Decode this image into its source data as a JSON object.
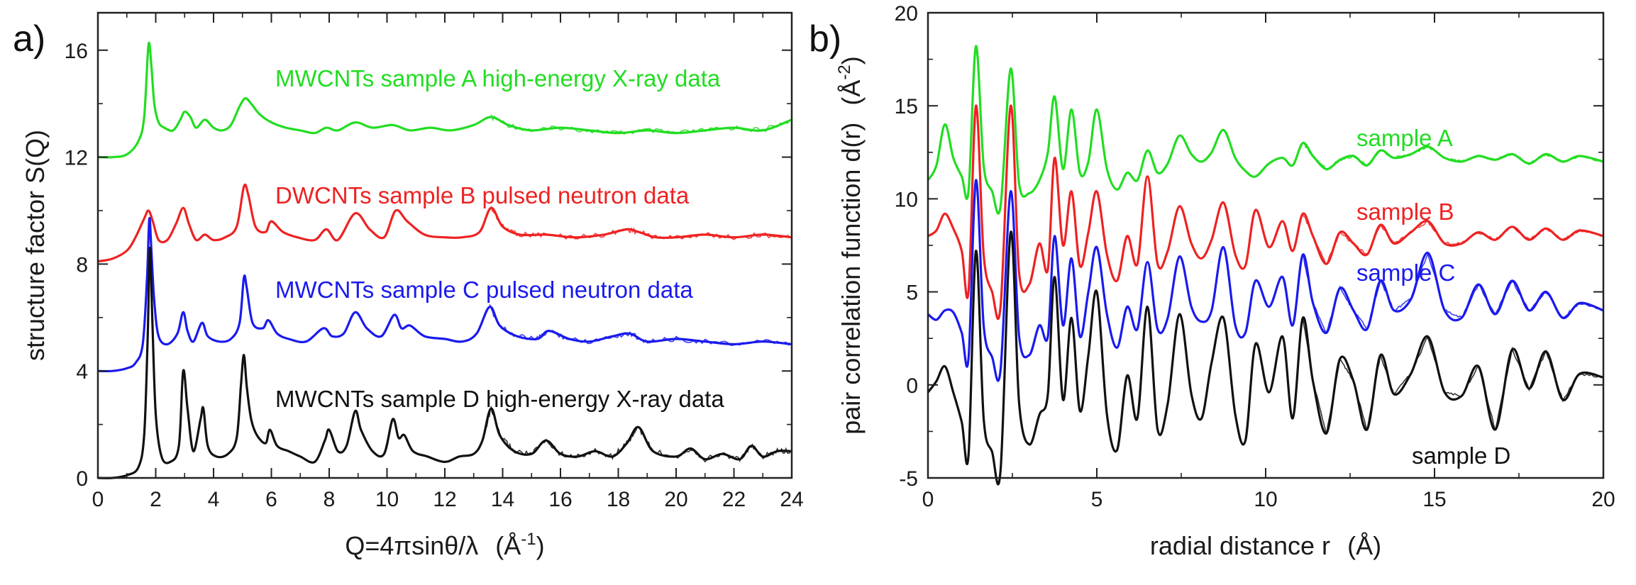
{
  "figure": {
    "panels": [
      "a)",
      "b)"
    ]
  },
  "chart_data": [
    {
      "type": "line",
      "panel": "a)",
      "xlabel": "Q=4πsinθ/λ",
      "xunit": "(Å",
      "xunit_exp": "-1",
      "xunit_close": ")",
      "ylabel": "structure factor S(Q)",
      "xlim": [
        0,
        24
      ],
      "ylim": [
        0,
        17.4
      ],
      "xticks": [
        0,
        2,
        4,
        6,
        8,
        10,
        12,
        14,
        16,
        18,
        20,
        22,
        24
      ],
      "yticks": [
        0,
        4,
        8,
        12,
        16
      ],
      "grid": false,
      "series": [
        {
          "name": "MWCNTs sample A high-energy X-ray data",
          "color": "#22dd22",
          "baseline": 12,
          "x": [
            0,
            0.5,
            1.0,
            1.4,
            1.6,
            1.75,
            1.85,
            1.95,
            2.1,
            2.3,
            2.6,
            2.85,
            3.0,
            3.2,
            3.4,
            3.7,
            4.0,
            4.3,
            4.6,
            4.9,
            5.1,
            5.3,
            5.6,
            6.0,
            6.5,
            7.0,
            7.5,
            7.9,
            8.3,
            8.9,
            9.5,
            10.2,
            10.8,
            11.5,
            12.2,
            13.0,
            13.6,
            14.2,
            15.0,
            16.0,
            17.0,
            18.0,
            19.0,
            20.0,
            21.0,
            22.0,
            23.0,
            24.0
          ],
          "y": [
            12.0,
            12.0,
            12.1,
            12.6,
            13.5,
            16.2,
            15.4,
            14.0,
            13.3,
            13.1,
            13.0,
            13.4,
            13.7,
            13.5,
            13.1,
            13.4,
            13.1,
            13.0,
            13.2,
            13.9,
            14.2,
            14.0,
            13.6,
            13.3,
            13.1,
            13.0,
            12.9,
            13.1,
            13.0,
            13.3,
            13.1,
            13.2,
            13.0,
            13.1,
            13.0,
            13.2,
            13.5,
            13.2,
            13.0,
            13.1,
            13.0,
            12.9,
            13.0,
            12.9,
            13.0,
            13.1,
            13.0,
            13.4
          ]
        },
        {
          "name": "DWCNTs sample B pulsed neutron data",
          "color": "#ee2222",
          "baseline": 8,
          "x": [
            0,
            0.5,
            1.0,
            1.3,
            1.6,
            1.75,
            1.9,
            2.1,
            2.4,
            2.7,
            2.95,
            3.15,
            3.4,
            3.7,
            4.0,
            4.4,
            4.8,
            5.05,
            5.2,
            5.45,
            5.8,
            6.0,
            6.4,
            6.9,
            7.5,
            7.9,
            8.3,
            8.9,
            9.4,
            9.9,
            10.3,
            10.7,
            11.3,
            12.0,
            12.6,
            13.2,
            13.6,
            14.0,
            14.6,
            15.5,
            16.5,
            17.5,
            18.3,
            18.7,
            19.3,
            20.0,
            21.0,
            22.0,
            23.0,
            24.0
          ],
          "y": [
            8.1,
            8.2,
            8.5,
            9.0,
            9.7,
            10.0,
            9.6,
            8.9,
            8.9,
            9.5,
            10.1,
            9.5,
            8.9,
            9.1,
            8.9,
            9.0,
            9.4,
            10.9,
            10.6,
            9.4,
            9.2,
            9.6,
            9.2,
            9.0,
            8.9,
            9.3,
            8.9,
            9.9,
            9.3,
            9.0,
            10.0,
            9.6,
            9.1,
            9.0,
            9.0,
            9.2,
            10.1,
            9.4,
            9.1,
            9.1,
            9.0,
            9.1,
            9.3,
            9.2,
            9.0,
            9.0,
            9.1,
            9.0,
            9.1,
            9.0
          ]
        },
        {
          "name": "MWCNTs sample C pulsed neutron data",
          "color": "#1a1aee",
          "baseline": 4,
          "x": [
            0,
            0.5,
            1.0,
            1.3,
            1.55,
            1.7,
            1.78,
            1.85,
            1.95,
            2.1,
            2.4,
            2.75,
            2.95,
            3.1,
            3.3,
            3.6,
            3.8,
            4.2,
            4.6,
            4.9,
            5.05,
            5.15,
            5.35,
            5.7,
            5.9,
            6.2,
            6.6,
            7.2,
            7.8,
            8.1,
            8.5,
            8.9,
            9.3,
            9.8,
            10.25,
            10.5,
            10.8,
            11.3,
            12.0,
            12.6,
            13.1,
            13.55,
            13.9,
            14.5,
            15.2,
            15.6,
            16.3,
            17.0,
            17.8,
            18.4,
            19.0,
            20.0,
            21.0,
            22.0,
            23.0,
            24.0
          ],
          "y": [
            4.0,
            4.0,
            4.1,
            4.3,
            5.0,
            7.5,
            9.7,
            8.5,
            6.6,
            5.3,
            5.0,
            5.4,
            6.2,
            5.5,
            5.1,
            5.8,
            5.3,
            5.1,
            5.2,
            5.8,
            7.5,
            7.1,
            5.8,
            5.6,
            5.9,
            5.4,
            5.2,
            5.1,
            5.6,
            5.3,
            5.4,
            6.2,
            5.6,
            5.3,
            6.1,
            5.6,
            5.7,
            5.3,
            5.2,
            5.1,
            5.4,
            6.4,
            5.7,
            5.3,
            5.2,
            5.5,
            5.2,
            5.1,
            5.3,
            5.4,
            5.1,
            5.2,
            5.1,
            5.0,
            5.1,
            5.0
          ]
        },
        {
          "name": "MWCNTs sample D high-energy X-ray data",
          "color": "#111111",
          "baseline": 0,
          "x": [
            0,
            0.5,
            1.0,
            1.4,
            1.6,
            1.72,
            1.8,
            1.88,
            2.0,
            2.2,
            2.5,
            2.8,
            2.95,
            3.1,
            3.3,
            3.55,
            3.65,
            3.8,
            4.1,
            4.5,
            4.8,
            4.95,
            5.05,
            5.15,
            5.3,
            5.5,
            5.8,
            5.95,
            6.2,
            6.6,
            7.0,
            7.5,
            7.85,
            8.0,
            8.3,
            8.6,
            8.9,
            9.1,
            9.5,
            9.9,
            10.2,
            10.4,
            10.6,
            10.9,
            11.4,
            12.0,
            12.5,
            13.0,
            13.3,
            13.6,
            13.9,
            14.4,
            15.0,
            15.5,
            16.0,
            16.6,
            17.2,
            17.8,
            18.3,
            18.7,
            19.2,
            20.0,
            20.5,
            21.0,
            21.6,
            22.2,
            22.6,
            23.0,
            23.5,
            24.0
          ],
          "y": [
            0,
            0,
            0.1,
            0.4,
            1.6,
            5.2,
            8.6,
            6.0,
            2.4,
            0.8,
            0.6,
            1.2,
            4.0,
            2.6,
            1.0,
            2.2,
            2.6,
            1.2,
            0.8,
            0.9,
            1.5,
            3.5,
            4.6,
            3.4,
            2.2,
            1.6,
            1.3,
            1.8,
            1.2,
            1.0,
            0.8,
            0.6,
            1.4,
            1.8,
            1.0,
            1.2,
            2.5,
            1.8,
            1.0,
            0.9,
            2.2,
            1.5,
            1.6,
            1.0,
            0.8,
            0.6,
            0.8,
            0.9,
            1.4,
            2.6,
            1.6,
            1.0,
            0.9,
            1.4,
            0.9,
            0.8,
            1.0,
            0.8,
            1.3,
            1.9,
            1.0,
            0.8,
            1.1,
            0.7,
            0.9,
            0.7,
            1.2,
            0.8,
            1.0,
            1.0
          ]
        }
      ]
    },
    {
      "type": "line",
      "panel": "b)",
      "xlabel": "radial distance r",
      "xunit": "(Å)",
      "ylabel": "pair correlation function d(r)",
      "yunit": "(Å",
      "yunit_exp": "-2",
      "yunit_close": ")",
      "xlim": [
        0,
        20
      ],
      "ylim": [
        -5,
        20
      ],
      "xticks": [
        0,
        5,
        10,
        15,
        20
      ],
      "yticks": [
        -5,
        0,
        5,
        10,
        15,
        20
      ],
      "grid": false,
      "series": [
        {
          "name": "sample A",
          "color": "#22dd22",
          "baseline": 12,
          "x": [
            0,
            0.25,
            0.5,
            0.75,
            1.0,
            1.2,
            1.42,
            1.65,
            1.9,
            2.15,
            2.45,
            2.7,
            3.0,
            3.3,
            3.55,
            3.75,
            4.0,
            4.25,
            4.5,
            4.75,
            5.0,
            5.3,
            5.6,
            5.9,
            6.2,
            6.5,
            6.8,
            7.1,
            7.45,
            7.8,
            8.1,
            8.4,
            8.75,
            9.1,
            9.4,
            9.7,
            10.1,
            10.5,
            10.8,
            11.1,
            11.4,
            11.8,
            12.2,
            12.6,
            13.0,
            13.4,
            13.8,
            14.3,
            14.8,
            15.3,
            15.8,
            16.3,
            16.8,
            17.3,
            17.8,
            18.3,
            18.8,
            19.3,
            20.0
          ],
          "y": [
            11.0,
            11.8,
            14.0,
            12.2,
            11.2,
            10.4,
            18.2,
            11.8,
            10.4,
            9.6,
            17.0,
            10.8,
            10.3,
            11.0,
            12.5,
            15.5,
            11.6,
            14.8,
            11.4,
            12.0,
            14.8,
            11.6,
            10.5,
            11.4,
            11.0,
            12.6,
            11.4,
            11.9,
            13.4,
            12.4,
            12.0,
            12.5,
            13.7,
            12.2,
            11.5,
            11.2,
            11.9,
            12.2,
            11.8,
            13.0,
            12.3,
            11.6,
            12.1,
            12.3,
            11.8,
            12.6,
            12.2,
            12.4,
            12.8,
            12.2,
            12.0,
            12.3,
            12.1,
            12.4,
            11.9,
            12.4,
            12.0,
            12.3,
            12.0
          ]
        },
        {
          "name": "sample B",
          "color": "#ee2222",
          "baseline": 8,
          "x": [
            0,
            0.25,
            0.5,
            0.75,
            1.0,
            1.2,
            1.42,
            1.65,
            1.9,
            2.15,
            2.45,
            2.7,
            3.0,
            3.3,
            3.55,
            3.75,
            4.0,
            4.25,
            4.5,
            4.75,
            5.0,
            5.3,
            5.6,
            5.9,
            6.2,
            6.5,
            6.8,
            7.1,
            7.45,
            7.8,
            8.1,
            8.4,
            8.75,
            9.1,
            9.4,
            9.7,
            10.1,
            10.5,
            10.8,
            11.1,
            11.4,
            11.8,
            12.2,
            12.6,
            13.0,
            13.4,
            13.8,
            14.3,
            14.8,
            15.3,
            15.8,
            16.3,
            16.8,
            17.3,
            17.8,
            18.3,
            18.8,
            19.3,
            20.0
          ],
          "y": [
            8.0,
            8.3,
            9.2,
            8.4,
            7.2,
            5.0,
            15.0,
            7.0,
            5.0,
            4.2,
            15.0,
            6.0,
            5.4,
            7.6,
            6.2,
            12.2,
            7.5,
            10.4,
            6.4,
            8.2,
            10.4,
            7.0,
            5.6,
            8.0,
            6.5,
            11.2,
            6.5,
            7.2,
            9.6,
            7.6,
            6.8,
            7.8,
            9.8,
            7.0,
            6.4,
            9.4,
            7.4,
            8.8,
            7.2,
            9.2,
            8.0,
            6.5,
            8.2,
            7.6,
            7.0,
            8.6,
            7.6,
            8.2,
            8.8,
            7.6,
            7.6,
            8.2,
            7.8,
            8.5,
            7.8,
            8.4,
            7.8,
            8.3,
            8.0
          ]
        },
        {
          "name": "sample C",
          "color": "#1a1aee",
          "baseline": 4,
          "x": [
            0,
            0.25,
            0.5,
            0.75,
            1.0,
            1.2,
            1.42,
            1.65,
            1.9,
            2.15,
            2.45,
            2.7,
            3.0,
            3.3,
            3.55,
            3.75,
            4.0,
            4.25,
            4.5,
            4.75,
            5.0,
            5.3,
            5.6,
            5.9,
            6.2,
            6.5,
            6.8,
            7.1,
            7.45,
            7.8,
            8.1,
            8.4,
            8.75,
            9.1,
            9.4,
            9.7,
            10.1,
            10.5,
            10.8,
            11.1,
            11.4,
            11.8,
            12.2,
            12.6,
            13.0,
            13.4,
            13.8,
            14.3,
            14.8,
            15.3,
            15.8,
            16.3,
            16.8,
            17.3,
            17.8,
            18.3,
            18.8,
            19.3,
            20.0
          ],
          "y": [
            3.8,
            3.5,
            4.0,
            3.9,
            2.8,
            1.4,
            11.0,
            3.2,
            1.5,
            0.8,
            10.4,
            2.6,
            1.6,
            3.2,
            2.6,
            8.0,
            3.2,
            6.8,
            2.6,
            5.0,
            7.4,
            3.8,
            2.0,
            4.2,
            3.0,
            6.6,
            3.0,
            3.6,
            6.9,
            4.2,
            3.4,
            4.0,
            7.4,
            3.2,
            2.8,
            5.6,
            4.2,
            5.8,
            3.2,
            7.0,
            4.4,
            2.8,
            5.2,
            4.0,
            3.0,
            5.6,
            4.0,
            4.6,
            7.1,
            4.0,
            3.6,
            5.4,
            3.8,
            5.6,
            4.0,
            5.0,
            3.6,
            4.4,
            4.0
          ]
        },
        {
          "name": "sample D",
          "color": "#111111",
          "baseline": 0,
          "x": [
            0,
            0.25,
            0.5,
            0.75,
            1.0,
            1.2,
            1.42,
            1.65,
            1.9,
            2.15,
            2.45,
            2.7,
            3.0,
            3.3,
            3.55,
            3.75,
            4.0,
            4.25,
            4.5,
            4.75,
            5.0,
            5.3,
            5.6,
            5.9,
            6.2,
            6.5,
            6.8,
            7.1,
            7.45,
            7.8,
            8.1,
            8.4,
            8.75,
            9.1,
            9.4,
            9.7,
            10.1,
            10.5,
            10.8,
            11.1,
            11.4,
            11.8,
            12.2,
            12.6,
            13.0,
            13.4,
            13.8,
            14.3,
            14.8,
            15.3,
            15.8,
            16.3,
            16.8,
            17.3,
            17.8,
            18.3,
            18.8,
            19.3,
            20.0
          ],
          "y": [
            -0.4,
            0.2,
            1.0,
            -0.4,
            -2.0,
            -3.8,
            7.2,
            -1.8,
            -3.6,
            -4.6,
            8.2,
            -1.0,
            -3.2,
            -1.6,
            -0.5,
            5.8,
            -0.8,
            3.6,
            -1.4,
            1.6,
            5.0,
            -1.6,
            -3.5,
            0.5,
            -1.8,
            4.2,
            -2.4,
            -1.0,
            3.8,
            -0.5,
            -1.8,
            1.2,
            3.6,
            -1.6,
            -3.0,
            2.2,
            -0.4,
            2.6,
            -1.8,
            3.6,
            0.2,
            -2.6,
            1.4,
            0.2,
            -2.4,
            1.6,
            -0.5,
            0.6,
            2.6,
            -0.4,
            -0.6,
            1.0,
            -2.4,
            1.9,
            -0.2,
            1.8,
            -0.8,
            0.6,
            0.4
          ]
        }
      ]
    }
  ]
}
